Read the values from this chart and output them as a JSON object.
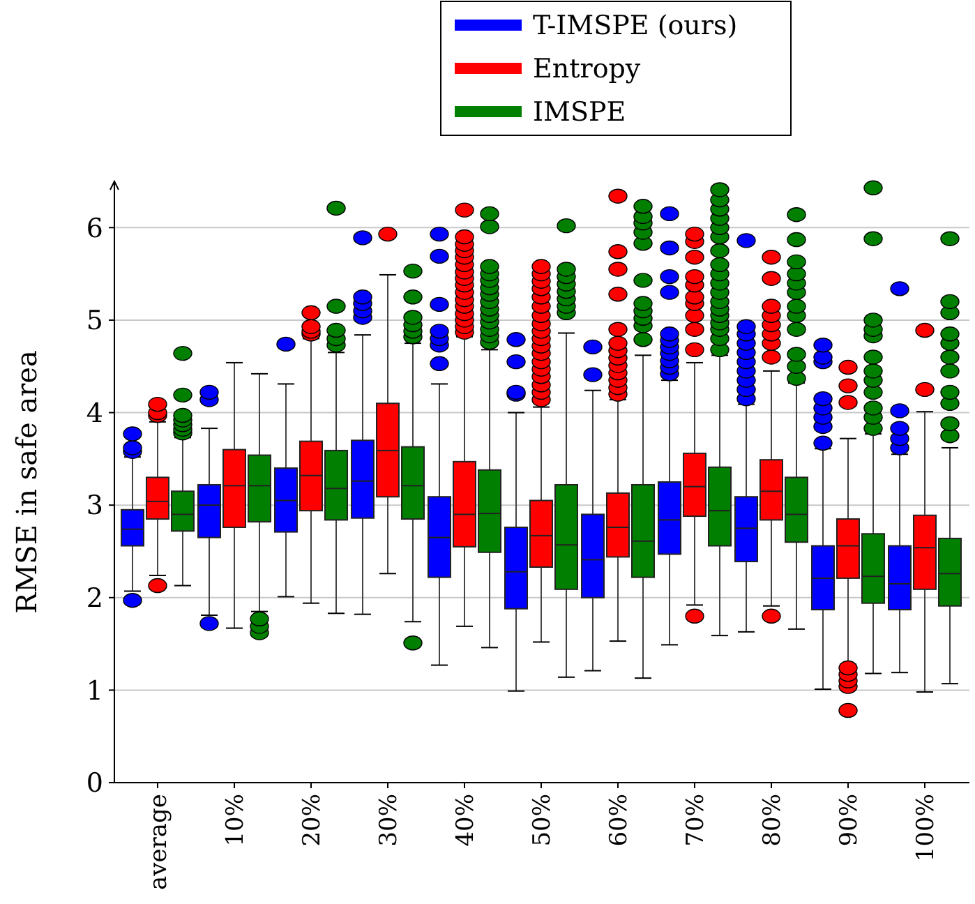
{
  "chart_data": {
    "type": "box",
    "ylabel": "RMSE in safe area",
    "categories": [
      "average",
      "10%",
      "20%",
      "30%",
      "40%",
      "50%",
      "60%",
      "70%",
      "80%",
      "90%",
      "100%"
    ],
    "ylim": [
      0,
      6.5
    ],
    "yticks": [
      0,
      1,
      2,
      3,
      4,
      5,
      6
    ],
    "grid": "y",
    "legend": "top",
    "series": [
      {
        "name": "T-IMSPE (ours)",
        "color": "#0000ff",
        "boxes": [
          {
            "low": 2.07,
            "q1": 2.56,
            "median": 2.74,
            "q3": 2.95,
            "high": 3.52,
            "outliers": [
              1.97,
              3.58,
              3.62,
              3.77
            ]
          },
          {
            "low": 1.81,
            "q1": 2.65,
            "median": 3.0,
            "q3": 3.22,
            "high": 3.83,
            "outliers": [
              1.72,
              4.14,
              4.22
            ]
          },
          {
            "low": 2.01,
            "q1": 2.71,
            "median": 3.05,
            "q3": 3.4,
            "high": 4.31,
            "outliers": [
              4.74
            ]
          },
          {
            "low": 1.82,
            "q1": 2.86,
            "median": 3.26,
            "q3": 3.7,
            "high": 4.84,
            "outliers": [
              5.03,
              5.1,
              5.18,
              5.25,
              5.89
            ]
          },
          {
            "low": 1.27,
            "q1": 2.22,
            "median": 2.65,
            "q3": 3.09,
            "high": 4.31,
            "outliers": [
              4.53,
              4.73,
              4.8,
              4.88,
              5.17,
              5.69,
              5.93
            ]
          },
          {
            "low": 0.99,
            "q1": 1.88,
            "median": 2.28,
            "q3": 2.76,
            "high": 4.0,
            "outliers": [
              4.2,
              4.22,
              4.55,
              4.79
            ]
          },
          {
            "low": 1.21,
            "q1": 2.0,
            "median": 2.41,
            "q3": 2.9,
            "high": 4.24,
            "outliers": [
              4.41,
              4.71
            ]
          },
          {
            "low": 1.49,
            "q1": 2.47,
            "median": 2.84,
            "q3": 3.25,
            "high": 4.35,
            "outliers": [
              4.42,
              4.49,
              4.56,
              4.64,
              4.71,
              4.78,
              4.85,
              5.3,
              5.47,
              5.78,
              6.15
            ]
          },
          {
            "low": 1.63,
            "q1": 2.39,
            "median": 2.75,
            "q3": 3.09,
            "high": 4.09,
            "outliers": [
              4.15,
              4.25,
              4.35,
              4.45,
              4.55,
              4.65,
              4.75,
              4.85,
              4.93,
              5.86
            ]
          },
          {
            "low": 1.01,
            "q1": 1.87,
            "median": 2.21,
            "q3": 2.56,
            "high": 3.61,
            "outliers": [
              3.67,
              3.85,
              3.95,
              4.05,
              4.15,
              4.55,
              4.6,
              4.73
            ]
          },
          {
            "low": 1.19,
            "q1": 1.87,
            "median": 2.15,
            "q3": 2.56,
            "high": 3.55,
            "outliers": [
              3.62,
              3.72,
              3.83,
              4.02,
              5.34
            ]
          }
        ]
      },
      {
        "name": "Entropy",
        "color": "#ff0000",
        "boxes": [
          {
            "low": 2.24,
            "q1": 2.85,
            "median": 3.04,
            "q3": 3.3,
            "high": 3.9,
            "outliers": [
              2.13,
              3.97,
              4.0,
              4.09
            ]
          },
          {
            "low": 1.67,
            "q1": 2.76,
            "median": 3.21,
            "q3": 3.6,
            "high": 4.54
          },
          {
            "low": 1.94,
            "q1": 2.94,
            "median": 3.32,
            "q3": 3.69,
            "high": 4.8,
            "outliers": [
              4.85,
              4.88,
              4.93,
              5.08
            ]
          },
          {
            "low": 2.26,
            "q1": 3.09,
            "median": 3.59,
            "q3": 4.1,
            "high": 5.49,
            "outliers": [
              5.93
            ]
          },
          {
            "low": 1.69,
            "q1": 2.55,
            "median": 2.9,
            "q3": 3.47,
            "high": 4.82,
            "outliers": [
              4.87,
              4.93,
              5.0,
              5.07,
              5.15,
              5.22,
              5.3,
              5.38,
              5.45,
              5.52,
              5.6,
              5.68,
              5.75,
              5.82,
              5.9,
              6.19
            ]
          },
          {
            "low": 1.52,
            "q1": 2.33,
            "median": 2.67,
            "q3": 3.05,
            "high": 4.06,
            "outliers": [
              4.14,
              4.22,
              4.3,
              4.39,
              4.47,
              4.55,
              4.64,
              4.72,
              4.8,
              4.88,
              4.96,
              5.05,
              5.15,
              5.25,
              5.34,
              5.42,
              5.5,
              5.58
            ]
          },
          {
            "low": 1.53,
            "q1": 2.44,
            "median": 2.76,
            "q3": 3.13,
            "high": 4.14,
            "outliers": [
              4.2,
              4.27,
              4.35,
              4.43,
              4.51,
              4.59,
              4.67,
              4.75,
              4.9,
              5.28,
              5.55,
              5.74,
              6.34
            ]
          },
          {
            "low": 1.92,
            "q1": 2.88,
            "median": 3.2,
            "q3": 3.56,
            "high": 4.54,
            "outliers": [
              1.8,
              4.68,
              4.9,
              5.05,
              5.18,
              5.25,
              5.38,
              5.47,
              5.68,
              5.85,
              5.93
            ]
          },
          {
            "low": 1.91,
            "q1": 2.84,
            "median": 3.15,
            "q3": 3.49,
            "high": 4.45,
            "outliers": [
              1.8,
              4.6,
              4.75,
              4.85,
              4.95,
              5.05,
              5.15,
              5.45,
              5.68
            ]
          },
          {
            "low": 1.28,
            "q1": 2.21,
            "median": 2.56,
            "q3": 2.85,
            "high": 3.72,
            "outliers": [
              0.78,
              1.04,
              1.1,
              1.17,
              1.24,
              4.11,
              4.29,
              4.49
            ]
          },
          {
            "low": 0.98,
            "q1": 2.09,
            "median": 2.54,
            "q3": 2.89,
            "high": 4.01,
            "outliers": [
              4.25,
              4.89
            ]
          }
        ]
      },
      {
        "name": "IMSPE",
        "color": "#007f00",
        "boxes": [
          {
            "low": 2.13,
            "q1": 2.72,
            "median": 2.9,
            "q3": 3.15,
            "high": 3.73,
            "outliers": [
              3.78,
              3.82,
              3.87,
              3.92,
              3.97,
              4.19,
              4.64
            ]
          },
          {
            "low": 1.85,
            "q1": 2.82,
            "median": 3.21,
            "q3": 3.54,
            "high": 4.42,
            "outliers": [
              1.62,
              1.69,
              1.77
            ]
          },
          {
            "low": 1.83,
            "q1": 2.84,
            "median": 3.18,
            "q3": 3.59,
            "high": 4.65,
            "outliers": [
              4.73,
              4.8,
              4.89,
              5.15,
              6.21
            ]
          },
          {
            "low": 1.74,
            "q1": 2.85,
            "median": 3.21,
            "q3": 3.63,
            "high": 4.75,
            "outliers": [
              1.51,
              4.82,
              4.88,
              4.95,
              5.03,
              5.25,
              5.53
            ]
          },
          {
            "low": 1.46,
            "q1": 2.49,
            "median": 2.91,
            "q3": 3.38,
            "high": 4.68,
            "outliers": [
              4.76,
              4.83,
              4.9,
              4.98,
              5.05,
              5.12,
              5.2,
              5.28,
              5.35,
              5.43,
              5.5,
              5.58,
              6.01,
              6.15
            ]
          },
          {
            "low": 1.14,
            "q1": 2.09,
            "median": 2.57,
            "q3": 3.22,
            "high": 4.86,
            "outliers": [
              5.08,
              5.15,
              5.23,
              5.31,
              5.39,
              5.47,
              5.55,
              6.02
            ]
          },
          {
            "low": 1.13,
            "q1": 2.22,
            "median": 2.61,
            "q3": 3.22,
            "high": 4.62,
            "outliers": [
              4.79,
              4.94,
              5.02,
              5.1,
              5.18,
              5.43,
              5.83,
              5.95,
              6.05,
              6.12,
              6.23
            ]
          },
          {
            "low": 1.59,
            "q1": 2.56,
            "median": 2.94,
            "q3": 3.41,
            "high": 4.62,
            "outliers": [
              4.68,
              4.8,
              4.9,
              4.97,
              5.05,
              5.12,
              5.2,
              5.3,
              5.4,
              5.5,
              5.6,
              5.75,
              5.9,
              6.0,
              6.1,
              6.2,
              6.3,
              6.41
            ]
          },
          {
            "low": 1.66,
            "q1": 2.6,
            "median": 2.9,
            "q3": 3.3,
            "high": 4.32,
            "outliers": [
              4.37,
              4.5,
              4.63,
              4.9,
              5.05,
              5.15,
              5.3,
              5.4,
              5.5,
              5.63,
              5.87,
              6.14
            ]
          },
          {
            "low": 1.18,
            "q1": 1.94,
            "median": 2.23,
            "q3": 2.69,
            "high": 3.77,
            "outliers": [
              3.83,
              3.95,
              4.05,
              4.22,
              4.35,
              4.45,
              4.6,
              4.83,
              4.9,
              5.0,
              5.88,
              6.43
            ]
          },
          {
            "low": 1.07,
            "q1": 1.91,
            "median": 2.26,
            "q3": 2.64,
            "high": 3.62,
            "outliers": [
              3.75,
              3.88,
              4.1,
              4.22,
              4.45,
              4.6,
              4.75,
              4.85,
              5.08,
              5.2,
              5.88
            ]
          }
        ]
      }
    ]
  }
}
